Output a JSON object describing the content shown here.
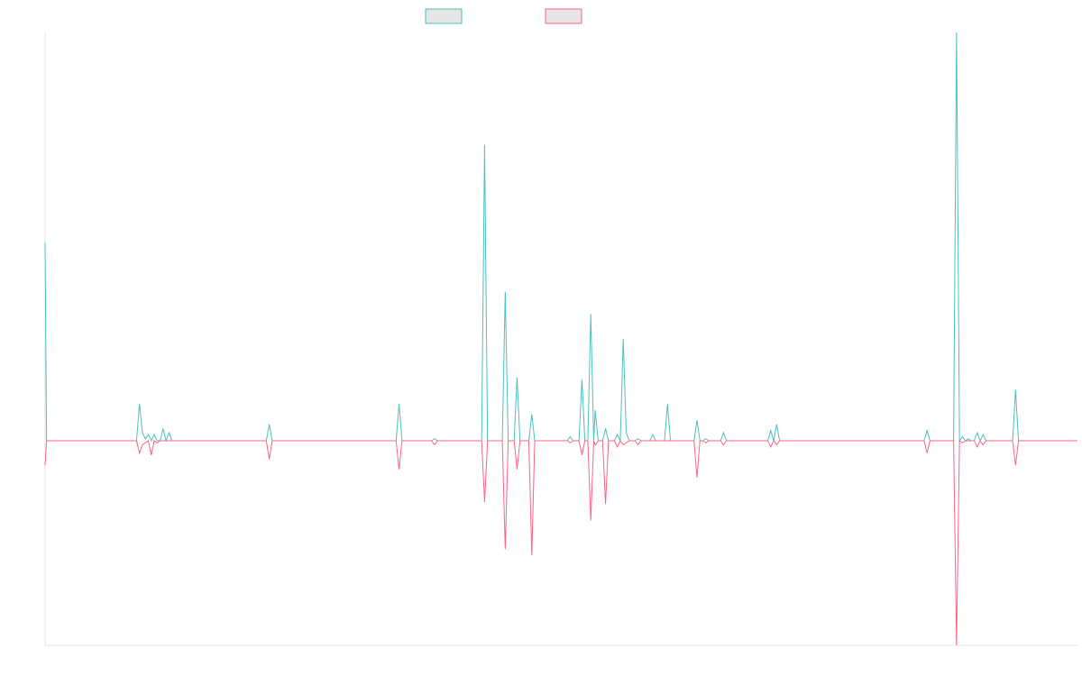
{
  "chart_data": {
    "type": "line",
    "title": "",
    "xlabel": "",
    "ylabel": "",
    "ylim": [
      -100,
      100
    ],
    "grid": false,
    "legend_position": "top-center",
    "series": [
      {
        "name": "",
        "color": "#4bc0c0",
        "fill": "#e6e6e6",
        "values": [
          [
            0,
            97
          ],
          [
            1,
            0
          ],
          [
            55,
            0
          ],
          [
            60,
            0
          ],
          [
            62,
            0
          ],
          [
            64,
            18
          ],
          [
            66,
            4
          ],
          [
            68,
            1
          ],
          [
            70,
            3
          ],
          [
            72,
            0
          ],
          [
            74,
            3
          ],
          [
            76,
            0
          ],
          [
            78,
            0
          ],
          [
            80,
            6
          ],
          [
            82,
            0
          ],
          [
            84,
            4
          ],
          [
            86,
            0
          ],
          [
            150,
            0
          ],
          [
            152,
            8
          ],
          [
            154,
            0
          ],
          [
            200,
            0
          ],
          [
            202,
            0
          ],
          [
            204,
            0
          ],
          [
            238,
            0
          ],
          [
            240,
            18
          ],
          [
            242,
            0
          ],
          [
            244,
            0
          ],
          [
            250,
            0
          ],
          [
            252,
            0
          ],
          [
            254,
            0
          ],
          [
            262,
            0
          ],
          [
            264,
            1
          ],
          [
            266,
            0
          ],
          [
            284,
            0
          ],
          [
            286,
            0
          ],
          [
            288,
            0
          ],
          [
            296,
            0
          ],
          [
            298,
            145
          ],
          [
            300,
            0
          ],
          [
            310,
            0
          ],
          [
            312,
            73
          ],
          [
            314,
            0
          ],
          [
            318,
            0
          ],
          [
            320,
            31
          ],
          [
            322,
            0
          ],
          [
            324,
            0
          ],
          [
            326,
            0
          ],
          [
            328,
            0
          ],
          [
            330,
            13
          ],
          [
            332,
            0
          ],
          [
            336,
            0
          ],
          [
            338,
            0
          ],
          [
            340,
            0
          ],
          [
            342,
            0
          ],
          [
            354,
            0
          ],
          [
            356,
            2
          ],
          [
            358,
            0
          ],
          [
            362,
            0
          ],
          [
            364,
            30
          ],
          [
            366,
            0
          ],
          [
            368,
            0
          ],
          [
            370,
            62
          ],
          [
            372,
            0
          ],
          [
            373,
            15
          ],
          [
            375,
            0
          ],
          [
            378,
            0
          ],
          [
            380,
            6
          ],
          [
            382,
            0
          ],
          [
            386,
            0
          ],
          [
            388,
            3
          ],
          [
            390,
            0
          ],
          [
            392,
            50
          ],
          [
            394,
            4
          ],
          [
            396,
            0
          ],
          [
            400,
            0
          ],
          [
            402,
            1
          ],
          [
            404,
            0
          ],
          [
            410,
            0
          ],
          [
            412,
            3
          ],
          [
            414,
            0
          ],
          [
            420,
            0
          ],
          [
            422,
            18
          ],
          [
            424,
            0
          ],
          [
            440,
            0
          ],
          [
            442,
            10
          ],
          [
            444,
            0
          ],
          [
            446,
            0
          ],
          [
            448,
            1
          ],
          [
            450,
            0
          ],
          [
            458,
            0
          ],
          [
            460,
            4
          ],
          [
            462,
            0
          ],
          [
            490,
            0
          ],
          [
            492,
            5
          ],
          [
            494,
            0
          ],
          [
            496,
            8
          ],
          [
            498,
            0
          ],
          [
            500,
            0
          ],
          [
            502,
            0
          ],
          [
            504,
            0
          ],
          [
            596,
            0
          ],
          [
            598,
            5
          ],
          [
            600,
            0
          ],
          [
            616,
            0
          ],
          [
            618,
            200
          ],
          [
            620,
            0
          ],
          [
            622,
            2
          ],
          [
            624,
            0
          ],
          [
            626,
            1
          ],
          [
            628,
            0
          ],
          [
            630,
            0
          ],
          [
            632,
            4
          ],
          [
            634,
            0
          ],
          [
            636,
            3
          ],
          [
            638,
            0
          ],
          [
            656,
            0
          ],
          [
            658,
            25
          ],
          [
            660,
            0
          ],
          [
            700,
            0
          ]
        ]
      },
      {
        "name": "",
        "color": "#ff6384",
        "fill": "#e6e6e6",
        "values": [
          [
            0,
            -12
          ],
          [
            1,
            0
          ],
          [
            55,
            0
          ],
          [
            60,
            0
          ],
          [
            62,
            0
          ],
          [
            64,
            -6
          ],
          [
            66,
            -2
          ],
          [
            68,
            -1
          ],
          [
            70,
            0
          ],
          [
            72,
            -7
          ],
          [
            74,
            0
          ],
          [
            76,
            -1
          ],
          [
            78,
            0
          ],
          [
            80,
            0
          ],
          [
            82,
            0
          ],
          [
            84,
            0
          ],
          [
            86,
            0
          ],
          [
            150,
            0
          ],
          [
            152,
            -9
          ],
          [
            154,
            0
          ],
          [
            200,
            0
          ],
          [
            202,
            0
          ],
          [
            204,
            0
          ],
          [
            238,
            0
          ],
          [
            240,
            -14
          ],
          [
            242,
            0
          ],
          [
            244,
            0
          ],
          [
            250,
            0
          ],
          [
            252,
            0
          ],
          [
            254,
            0
          ],
          [
            262,
            0
          ],
          [
            264,
            -2
          ],
          [
            266,
            0
          ],
          [
            284,
            0
          ],
          [
            286,
            0
          ],
          [
            288,
            0
          ],
          [
            296,
            0
          ],
          [
            298,
            -30
          ],
          [
            300,
            0
          ],
          [
            310,
            0
          ],
          [
            312,
            -53
          ],
          [
            314,
            0
          ],
          [
            318,
            0
          ],
          [
            320,
            -14
          ],
          [
            322,
            0
          ],
          [
            324,
            0
          ],
          [
            326,
            0
          ],
          [
            328,
            0
          ],
          [
            330,
            -56
          ],
          [
            332,
            0
          ],
          [
            336,
            0
          ],
          [
            338,
            0
          ],
          [
            340,
            0
          ],
          [
            342,
            0
          ],
          [
            354,
            0
          ],
          [
            356,
            -1
          ],
          [
            358,
            0
          ],
          [
            362,
            0
          ],
          [
            364,
            -7
          ],
          [
            366,
            0
          ],
          [
            368,
            0
          ],
          [
            370,
            -39
          ],
          [
            372,
            0
          ],
          [
            373,
            -2
          ],
          [
            375,
            0
          ],
          [
            378,
            0
          ],
          [
            380,
            -31
          ],
          [
            382,
            0
          ],
          [
            386,
            0
          ],
          [
            388,
            -3
          ],
          [
            390,
            0
          ],
          [
            392,
            -2
          ],
          [
            394,
            -1
          ],
          [
            396,
            0
          ],
          [
            400,
            0
          ],
          [
            402,
            -2
          ],
          [
            404,
            0
          ],
          [
            410,
            0
          ],
          [
            412,
            0
          ],
          [
            414,
            0
          ],
          [
            420,
            0
          ],
          [
            422,
            0
          ],
          [
            424,
            0
          ],
          [
            440,
            0
          ],
          [
            442,
            -18
          ],
          [
            444,
            0
          ],
          [
            446,
            0
          ],
          [
            448,
            -1
          ],
          [
            450,
            0
          ],
          [
            458,
            0
          ],
          [
            460,
            -2
          ],
          [
            462,
            0
          ],
          [
            490,
            0
          ],
          [
            492,
            -3
          ],
          [
            494,
            0
          ],
          [
            496,
            -2
          ],
          [
            498,
            0
          ],
          [
            500,
            0
          ],
          [
            502,
            0
          ],
          [
            504,
            0
          ],
          [
            596,
            0
          ],
          [
            598,
            -6
          ],
          [
            600,
            0
          ],
          [
            616,
            0
          ],
          [
            618,
            -100
          ],
          [
            620,
            0
          ],
          [
            622,
            -1
          ],
          [
            624,
            0
          ],
          [
            626,
            0
          ],
          [
            628,
            0
          ],
          [
            630,
            0
          ],
          [
            632,
            -3
          ],
          [
            634,
            0
          ],
          [
            636,
            -2
          ],
          [
            638,
            0
          ],
          [
            656,
            0
          ],
          [
            658,
            -12
          ],
          [
            660,
            0
          ],
          [
            700,
            0
          ]
        ]
      }
    ]
  }
}
